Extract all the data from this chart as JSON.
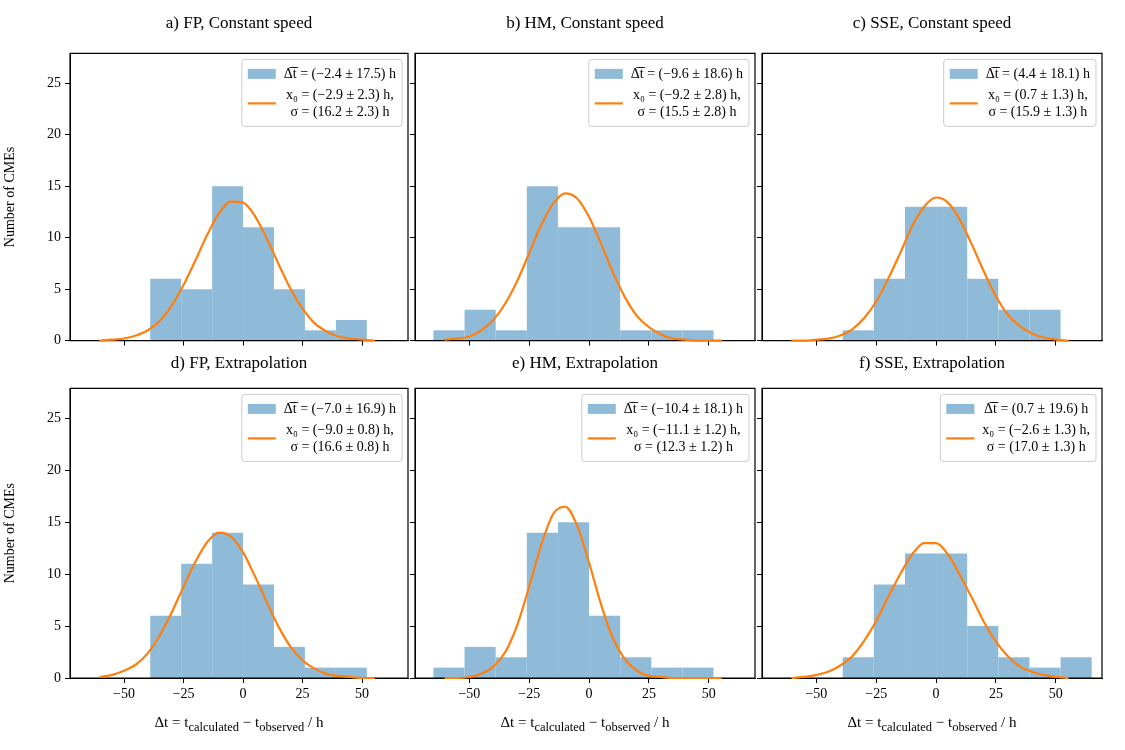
{
  "chart_data": [
    {
      "type": "histogram",
      "title": "a) FP, Constant speed",
      "ylabel": "Number of CMEs",
      "legend": "top right",
      "marker": "none",
      "tick_labels": "y",
      "xlim": [
        -72.7,
        69.3
      ],
      "ylim": [
        0,
        27.9
      ],
      "xticks": [
        -50,
        -25,
        0,
        25,
        50
      ],
      "yticks": [
        0,
        5,
        10,
        15,
        20,
        25
      ],
      "bins": [
        -39,
        -26,
        -13,
        0,
        13,
        26,
        39,
        52
      ],
      "series": [
        {
          "name": "Δ̅t̅ = (−2.4 ± 17.5) h",
          "color": "#8fbbd9",
          "values": [
            6,
            5,
            15,
            11,
            5,
            1,
            2
          ]
        },
        {
          "type": "line",
          "name": "x₀ = (−2.9 ± 2.3) h,\nσ = (16.2 ± 2.3) h",
          "color": "#ff7f0e",
          "x": [
            -60,
            -55,
            -50,
            -45,
            -40,
            -35,
            -30,
            -25,
            -20,
            -15,
            -10,
            -5,
            0,
            5,
            10,
            15,
            20,
            25,
            30,
            35,
            40,
            45,
            50,
            55
          ],
          "values": [
            0.0,
            0.1,
            0.2,
            0.5,
            1.0,
            1.9,
            3.4,
            5.4,
            7.8,
            10.3,
            12.4,
            13.5,
            13.4,
            12.1,
            9.9,
            7.4,
            5.0,
            3.1,
            1.7,
            0.9,
            0.4,
            0.2,
            0.1,
            0.0
          ]
        }
      ]
    },
    {
      "type": "histogram",
      "title": "b) HM, Constant speed",
      "legend": "top right",
      "marker": "none",
      "tick_labels": false,
      "xlim": [
        -72.7,
        69.3
      ],
      "ylim": [
        0,
        27.9
      ],
      "xticks": [
        -50,
        -25,
        0,
        25,
        50
      ],
      "yticks": [
        0,
        5,
        10,
        15,
        20,
        25
      ],
      "bins": [
        -65,
        -52,
        -39,
        -26,
        -13,
        0,
        13,
        26,
        39,
        52
      ],
      "series": [
        {
          "name": "Δ̅t̅ = (−9.6 ± 18.6) h",
          "color": "#8fbbd9",
          "values": [
            1,
            3,
            1,
            15,
            11,
            11,
            1,
            1,
            1
          ]
        },
        {
          "type": "line",
          "name": "x₀ = (−9.2 ± 2.8) h,\nσ = (15.5 ± 2.8) h",
          "color": "#ff7f0e",
          "x": [
            -60,
            -55,
            -50,
            -45,
            -40,
            -35,
            -30,
            -25,
            -20,
            -15,
            -10,
            -5,
            0,
            5,
            10,
            15,
            20,
            25,
            30,
            35,
            40,
            45,
            50,
            55
          ],
          "values": [
            0.1,
            0.2,
            0.4,
            1.0,
            2.0,
            3.6,
            5.8,
            8.5,
            11.2,
            13.3,
            14.3,
            13.8,
            12.0,
            9.4,
            6.6,
            4.2,
            2.4,
            1.3,
            0.6,
            0.2,
            0.1,
            0.0,
            0.0,
            0.0
          ]
        }
      ]
    },
    {
      "type": "histogram",
      "title": "c) SSE, Constant speed",
      "legend": "top right",
      "marker": "none",
      "tick_labels": false,
      "xlim": [
        -72.7,
        69.3
      ],
      "ylim": [
        0,
        27.9
      ],
      "xticks": [
        -50,
        -25,
        0,
        25,
        50
      ],
      "yticks": [
        0,
        5,
        10,
        15,
        20,
        25
      ],
      "bins": [
        -39,
        -26,
        -13,
        0,
        13,
        26,
        39,
        52
      ],
      "series": [
        {
          "name": "Δ̅t̅ = (4.4 ± 18.1) h",
          "color": "#8fbbd9",
          "values": [
            1,
            6,
            13,
            13,
            6,
            3,
            3
          ]
        },
        {
          "type": "line",
          "name": "x₀ = (0.7 ± 1.3) h,\nσ = (15.9 ± 1.3) h",
          "color": "#ff7f0e",
          "x": [
            -60,
            -55,
            -50,
            -45,
            -40,
            -35,
            -30,
            -25,
            -20,
            -15,
            -10,
            -5,
            0,
            5,
            10,
            15,
            20,
            25,
            30,
            35,
            40,
            45,
            50,
            55
          ],
          "values": [
            0.0,
            0.0,
            0.1,
            0.2,
            0.5,
            1.1,
            2.2,
            3.8,
            6.0,
            8.5,
            11.1,
            13.0,
            13.9,
            13.4,
            11.7,
            9.3,
            6.7,
            4.3,
            2.5,
            1.4,
            0.7,
            0.3,
            0.1,
            0.0
          ]
        }
      ]
    },
    {
      "type": "histogram",
      "title": "d) FP, Extrapolation",
      "xlabel": "Δt = t$_{calculated}$ − t$_{observed}$ / h",
      "ylabel": "Number of CMEs",
      "legend": "top right",
      "marker": "none",
      "xlim": [
        -72.7,
        69.3
      ],
      "ylim": [
        0,
        27.9
      ],
      "xticks": [
        -50,
        -25,
        0,
        25,
        50
      ],
      "yticks": [
        0,
        5,
        10,
        15,
        20,
        25
      ],
      "bins": [
        -39,
        -26,
        -13,
        0,
        13,
        26,
        39,
        52
      ],
      "series": [
        {
          "name": "Δ̅t̅ = (−7.0 ± 16.9) h",
          "color": "#8fbbd9",
          "values": [
            6,
            11,
            14,
            9,
            3,
            1,
            1
          ]
        },
        {
          "type": "line",
          "name": "x₀ = (−9.0 ± 0.8) h,\nσ = (16.6 ± 0.8) h",
          "color": "#ff7f0e",
          "x": [
            -60,
            -55,
            -50,
            -45,
            -40,
            -35,
            -30,
            -25,
            -20,
            -15,
            -10,
            -5,
            0,
            5,
            10,
            15,
            20,
            25,
            30,
            35,
            40,
            45,
            50,
            55
          ],
          "values": [
            0.1,
            0.3,
            0.7,
            1.3,
            2.4,
            4.1,
            6.3,
            8.8,
            11.2,
            13.1,
            14.0,
            13.6,
            12.1,
            9.8,
            7.3,
            4.9,
            3.0,
            1.7,
            0.9,
            0.4,
            0.2,
            0.1,
            0.0,
            0.0
          ]
        }
      ]
    },
    {
      "type": "histogram",
      "title": "e) HM, Extrapolation",
      "xlabel": "Δt = t$_{calculated}$ − t$_{observed}$ / h",
      "legend": "top right",
      "marker": "none",
      "tick_labels": "x",
      "xlim": [
        -72.7,
        69.3
      ],
      "ylim": [
        0,
        27.9
      ],
      "xticks": [
        -50,
        -25,
        0,
        25,
        50
      ],
      "yticks": [
        0,
        5,
        10,
        15,
        20,
        25
      ],
      "bins": [
        -65,
        -52,
        -39,
        -26,
        -13,
        0,
        13,
        26,
        39,
        52
      ],
      "series": [
        {
          "name": "Δ̅t̅ = (−10.4 ± 18.1) h",
          "color": "#8fbbd9",
          "values": [
            1,
            3,
            2,
            14,
            15,
            6,
            2,
            1,
            1
          ]
        },
        {
          "type": "line",
          "name": "x₀ = (−11.1 ± 1.2) h,\nσ = (12.3 ± 1.2) h",
          "color": "#ff7f0e",
          "x": [
            -60,
            -55,
            -50,
            -45,
            -40,
            -35,
            -30,
            -25,
            -20,
            -15,
            -10,
            -5,
            0,
            5,
            10,
            15,
            20,
            25,
            30,
            35,
            40,
            45,
            50,
            55
          ],
          "values": [
            0.0,
            0.0,
            0.1,
            0.4,
            1.1,
            2.5,
            5.1,
            8.8,
            12.8,
            15.8,
            16.5,
            14.7,
            11.1,
            7.1,
            3.8,
            1.8,
            0.7,
            0.2,
            0.1,
            0.0,
            0.0,
            0.0,
            0.0,
            0.0
          ]
        }
      ]
    },
    {
      "type": "histogram",
      "title": "f) SSE, Extrapolation",
      "xlabel": "Δt = t$_{calculated}$ − t$_{observed}$ / h",
      "legend": "top right",
      "marker": "none",
      "tick_labels": "x",
      "xlim": [
        -72.7,
        69.3
      ],
      "ylim": [
        0,
        27.9
      ],
      "xticks": [
        -50,
        -25,
        0,
        25,
        50
      ],
      "yticks": [
        0,
        5,
        10,
        15,
        20,
        25
      ],
      "bins": [
        -39,
        -26,
        -13,
        0,
        13,
        26,
        39,
        52,
        65
      ],
      "series": [
        {
          "name": "Δ̅t̅ = (0.7 ± 19.6) h",
          "color": "#8fbbd9",
          "values": [
            2,
            9,
            12,
            12,
            5,
            2,
            1,
            2
          ]
        },
        {
          "type": "line",
          "name": "x₀ = (−2.6 ± 1.3) h,\nσ = (17.0 ± 1.3) h",
          "color": "#ff7f0e",
          "x": [
            -60,
            -55,
            -50,
            -45,
            -40,
            -35,
            -30,
            -25,
            -20,
            -15,
            -10,
            -5,
            0,
            5,
            10,
            15,
            20,
            25,
            30,
            35,
            40,
            45,
            50,
            55
          ],
          "values": [
            0.0,
            0.1,
            0.3,
            0.6,
            1.2,
            2.1,
            3.6,
            5.5,
            7.8,
            10.0,
            11.9,
            13.0,
            13.0,
            11.9,
            9.9,
            7.7,
            5.4,
            3.5,
            2.1,
            1.1,
            0.6,
            0.3,
            0.1,
            0.0
          ]
        }
      ]
    }
  ]
}
